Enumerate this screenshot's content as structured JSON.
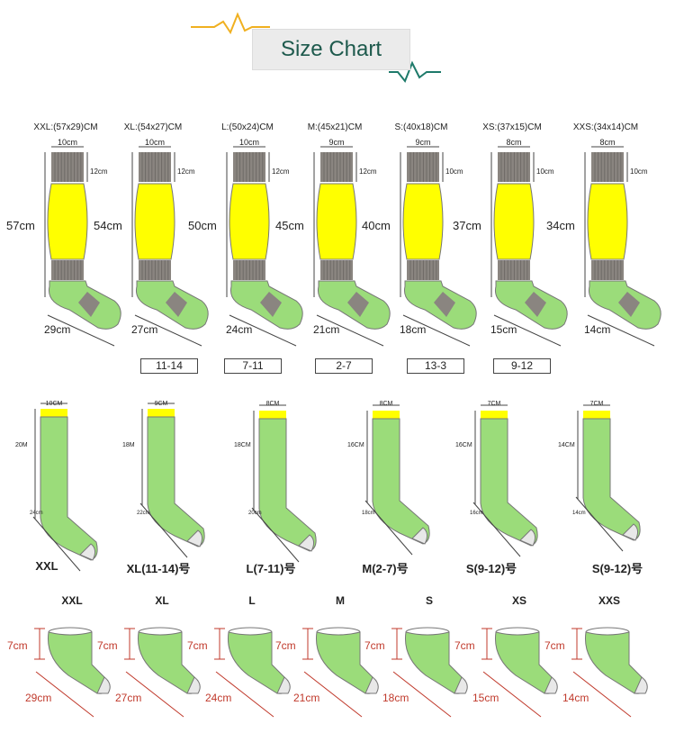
{
  "header": {
    "title": "Size Chart"
  },
  "colors": {
    "yellow": "#ffff00",
    "green": "#9bdc7a",
    "gray": "#8a8580",
    "red": "#c0392b",
    "title_text": "#1e5a4d",
    "zigzag_left": "#f0b020",
    "zigzag_right": "#1e7a6a"
  },
  "long_socks": [
    {
      "size": "XXL:(57x29)CM",
      "top": "10cm",
      "cuff": "12cm",
      "length": "57cm",
      "foot": "29cm"
    },
    {
      "size": "XL:(54x27)CM",
      "top": "10cm",
      "cuff": "12cm",
      "length": "54cm",
      "foot": "27cm"
    },
    {
      "size": "L:(50x24)CM",
      "top": "10cm",
      "cuff": "12cm",
      "length": "50cm",
      "foot": "24cm"
    },
    {
      "size": "M:(45x21)CM",
      "top": "9cm",
      "cuff": "12cm",
      "length": "45cm",
      "foot": "21cm"
    },
    {
      "size": "S:(40x18)CM",
      "top": "9cm",
      "cuff": "10cm",
      "length": "40cm",
      "foot": "18cm"
    },
    {
      "size": "XS:(37x15)CM",
      "top": "8cm",
      "cuff": "10cm",
      "length": "37cm",
      "foot": "15cm"
    },
    {
      "size": "XXS:(34x14)CM",
      "top": "8cm",
      "cuff": "10cm",
      "length": "34cm",
      "foot": "14cm"
    }
  ],
  "shoe_ranges": [
    "11-14",
    "7-11",
    "2-7",
    "13-3",
    "9-12"
  ],
  "mid_socks": [
    {
      "name": "XXL",
      "top": "10CM",
      "length": "20M",
      "foot": "24cm"
    },
    {
      "name": "XL(11-14)号",
      "top": "9CM",
      "length": "18M",
      "foot": "22cm"
    },
    {
      "name": "L(7-11)号",
      "top": "8CM",
      "length": "18CM",
      "foot": "20cm"
    },
    {
      "name": "M(2-7)号",
      "top": "8CM",
      "length": "16CM",
      "foot": "18cm"
    },
    {
      "name": "S(9-12)号",
      "top": "7CM",
      "length": "16CM",
      "foot": "16cm"
    },
    {
      "name": "S(9-12)号",
      "top": "7CM",
      "length": "14CM",
      "foot": "14cm"
    }
  ],
  "ankle_socks": [
    {
      "name": "XXL",
      "height": "7cm",
      "foot": "29cm"
    },
    {
      "name": "XL",
      "height": "7cm",
      "foot": "27cm"
    },
    {
      "name": "L",
      "height": "7cm",
      "foot": "24cm"
    },
    {
      "name": "M",
      "height": "7cm",
      "foot": "21cm"
    },
    {
      "name": "S",
      "height": "7cm",
      "foot": "18cm"
    },
    {
      "name": "XS",
      "height": "7cm",
      "foot": "15cm"
    },
    {
      "name": "XXS",
      "height": "7cm",
      "foot": "14cm"
    }
  ]
}
